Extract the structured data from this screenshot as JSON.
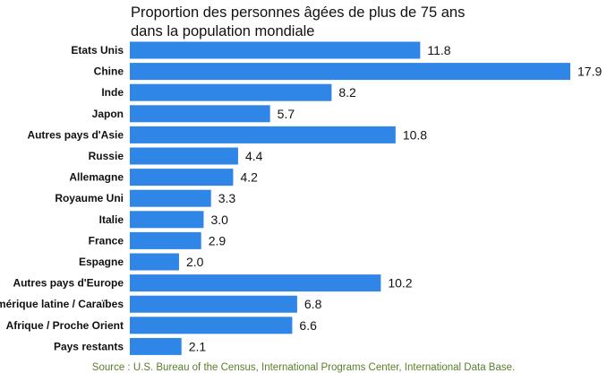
{
  "chart_data": {
    "type": "bar",
    "orientation": "horizontal",
    "title_lines": [
      "Proportion des personnes âgées de plus de 75 ans",
      "dans la population mondiale"
    ],
    "categories": [
      "Etats Unis",
      "Chine",
      "Inde",
      "Japon",
      "Autres pays d'Asie",
      "Russie",
      "Allemagne",
      "Royaume Uni",
      "Italie",
      "France",
      "Espagne",
      "Autres pays d'Europe",
      "Amérique latine / Caraïbes",
      "Afrique / Proche Orient",
      "Pays restants"
    ],
    "values": [
      11.8,
      17.9,
      8.2,
      5.7,
      10.8,
      4.4,
      4.2,
      3.3,
      3.0,
      2.9,
      2.0,
      10.2,
      6.8,
      6.6,
      2.1
    ],
    "value_labels": [
      "11.8",
      "17.9",
      "8.2",
      "5.7",
      "10.8",
      "4.4",
      "4.2",
      "3.3",
      "3.0",
      "2.9",
      "2.0",
      "10.2",
      "6.8",
      "6.6",
      "2.1"
    ],
    "xlim": [
      0,
      17.9
    ],
    "grid": false,
    "legend": "none",
    "bar_color": "#2f86e6",
    "source": "Source : U.S. Bureau of the Census, International Programs Center, International Data Base."
  }
}
